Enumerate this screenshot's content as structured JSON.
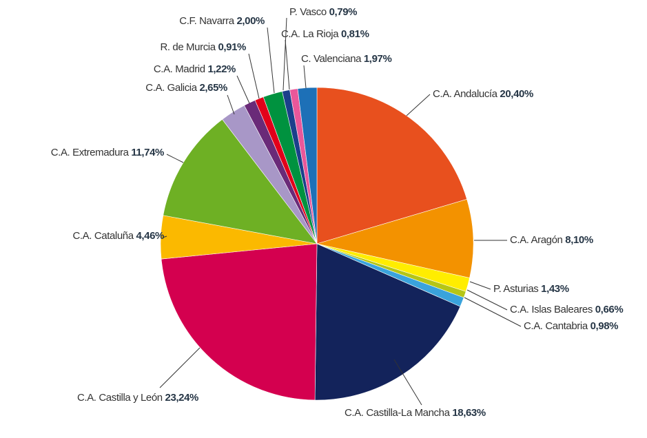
{
  "chart_data": {
    "type": "pie",
    "categories": [
      "C.A. Andalucía",
      "C.A. Aragón",
      "P. Asturias",
      "C.A. Islas Baleares",
      "C.A. Cantabria",
      "C.A. Castilla-La Mancha",
      "C.A. Castilla y León",
      "C.A. Cataluña",
      "C.A. Extremadura",
      "C.A. Galicia",
      "C.A. Madrid",
      "R. de Murcia",
      "C.F. Navarra",
      "P. Vasco",
      "C.A. La Rioja",
      "C. Valenciana"
    ],
    "values": [
      20.4,
      8.1,
      1.43,
      0.66,
      0.98,
      18.63,
      23.24,
      4.46,
      11.74,
      2.65,
      1.22,
      0.91,
      2.0,
      0.79,
      0.81,
      1.97
    ],
    "value_labels": [
      "20,40%",
      "8,10%",
      "1,43%",
      "0,66%",
      "0,98%",
      "18,63%",
      "23,24%",
      "4,46%",
      "11,74%",
      "2,65%",
      "1,22%",
      "0,91%",
      "2,00%",
      "0,79%",
      "0,81%",
      "1,97%"
    ],
    "colors": [
      "#e8501e",
      "#f39200",
      "#ffed00",
      "#b5c516",
      "#3aa3dc",
      "#13235b",
      "#d4004f",
      "#fbb900",
      "#6eb024",
      "#a897c7",
      "#6a2a78",
      "#e2001a",
      "#00923f",
      "#1b3f8b",
      "#e9579a",
      "#1d70b7"
    ]
  }
}
